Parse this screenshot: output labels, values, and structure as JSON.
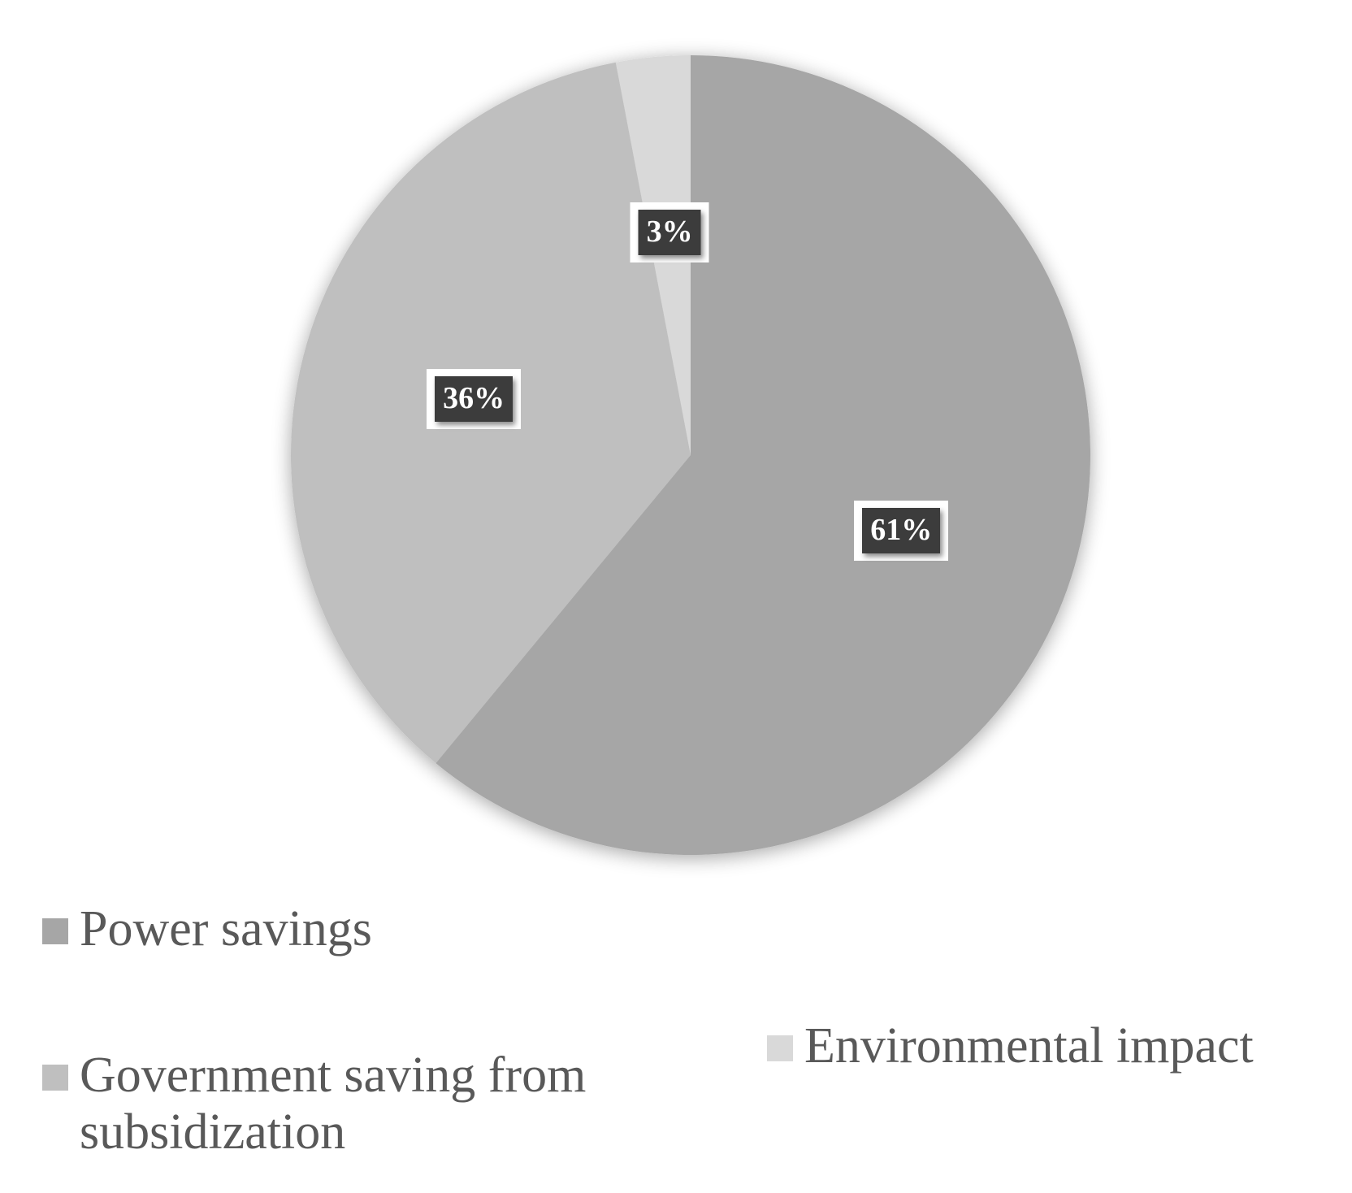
{
  "chart_data": {
    "type": "pie",
    "title": "",
    "categories": [
      "Power savings",
      "Government saving from subsidization",
      "Environmental impact"
    ],
    "values": [
      61,
      36,
      3
    ],
    "data_labels": [
      "61%",
      "36%",
      "3%"
    ],
    "colors": [
      "#a6a6a6",
      "#bfbfbf",
      "#d9d9d9"
    ],
    "start_angle": "12 o'clock",
    "direction": "clockwise",
    "legend_placement": "bottom"
  }
}
